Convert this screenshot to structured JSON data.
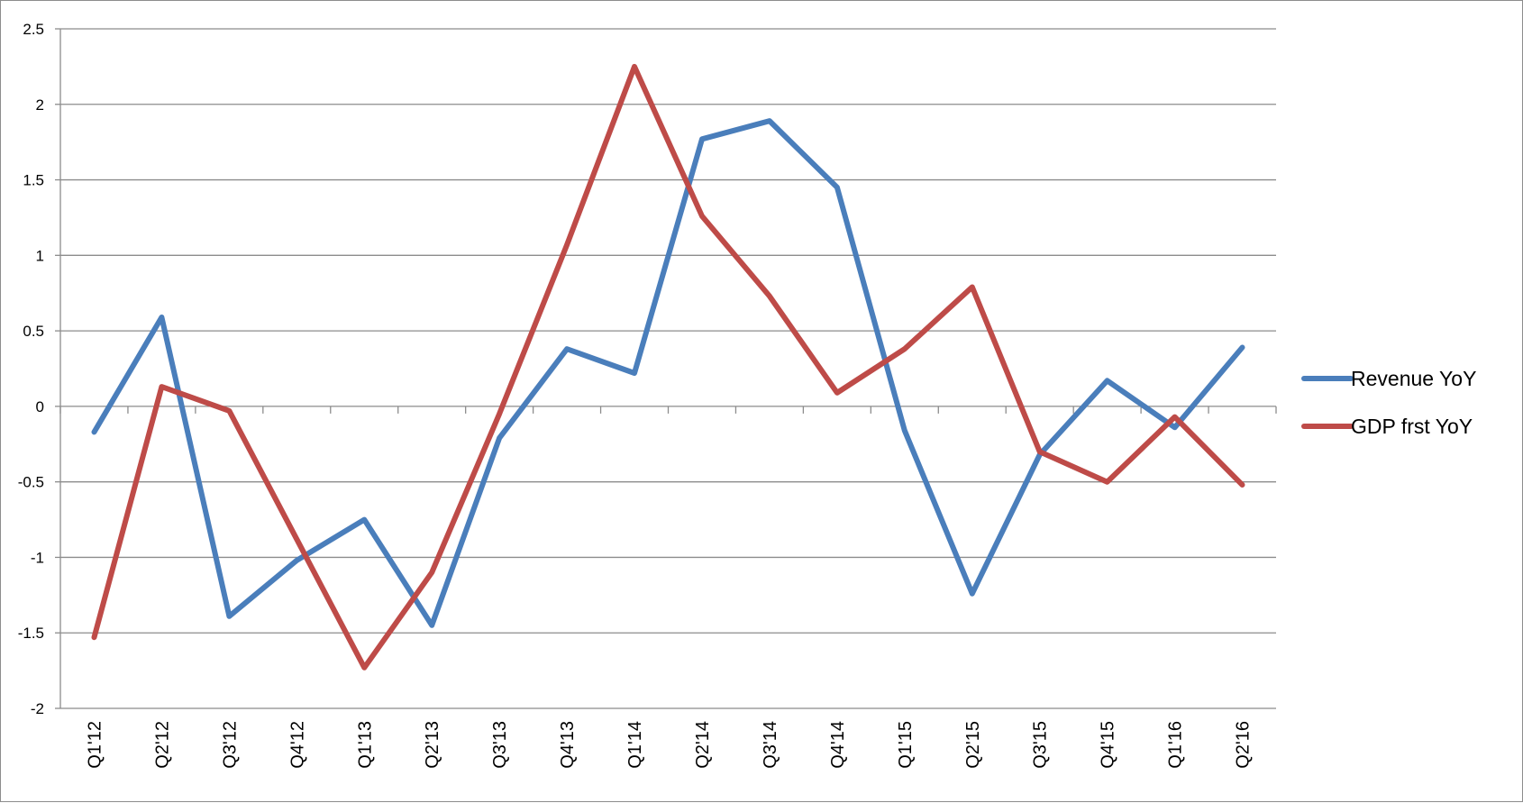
{
  "chart_data": {
    "type": "line",
    "categories": [
      "Q1'12",
      "Q2'12",
      "Q3'12",
      "Q4'12",
      "Q1'13",
      "Q2'13",
      "Q3'13",
      "Q4'13",
      "Q1'14",
      "Q2'14",
      "Q3'14",
      "Q4'14",
      "Q1'15",
      "Q2'15",
      "Q3'15",
      "Q4'15",
      "Q1'16",
      "Q2'16"
    ],
    "ylim": [
      -2,
      2.5
    ],
    "yticks": [
      "2.5",
      "2",
      "1.5",
      "1",
      "0.5",
      "0",
      "-0.5",
      "-1",
      "-1.5",
      "-2"
    ],
    "ytick_values": [
      2.5,
      2,
      1.5,
      1,
      0.5,
      0,
      -0.5,
      -1,
      -1.5,
      -2
    ],
    "grid": true,
    "legend_position": "right",
    "series": [
      {
        "name": "Revenue YoY",
        "color": "#4a7ebb",
        "values": [
          -0.17,
          0.59,
          -1.39,
          -1.02,
          -0.75,
          -1.45,
          -0.21,
          0.38,
          0.22,
          1.77,
          1.89,
          1.45,
          -0.16,
          -1.24,
          -0.32,
          0.17,
          -0.14,
          0.39
        ]
      },
      {
        "name": "GDP frst YoY",
        "color": "#be4b48",
        "values": [
          -1.53,
          0.13,
          -0.03,
          -0.88,
          -1.73,
          -1.1,
          -0.05,
          1.07,
          2.25,
          1.26,
          0.73,
          0.09,
          0.38,
          0.79,
          -0.3,
          -0.5,
          -0.07,
          -0.52
        ]
      }
    ]
  }
}
